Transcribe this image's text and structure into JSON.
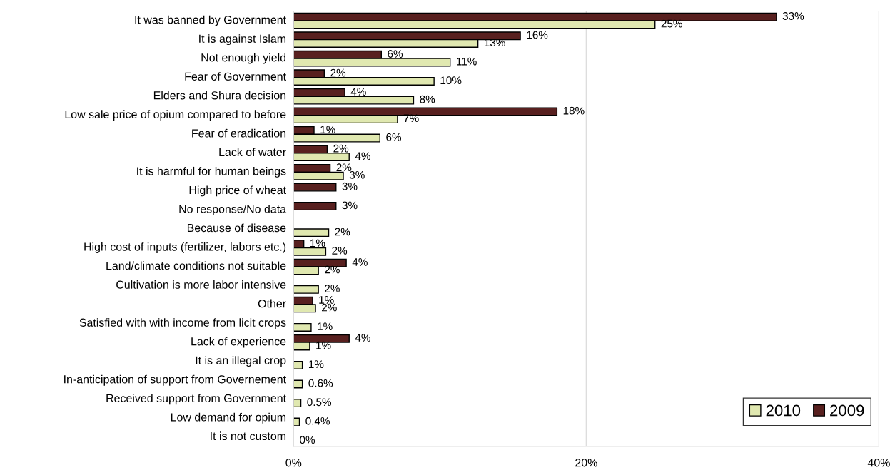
{
  "chart_data": {
    "type": "bar",
    "orientation": "horizontal",
    "categories": [
      "It was banned by Government",
      "It is against Islam",
      "Not enough yield",
      "Fear of Government",
      "Elders and Shura decision",
      "Low sale price of opium compared to before",
      "Fear of eradication",
      "Lack of water",
      "It is harmful for human beings",
      "High price of wheat",
      "No response/No data",
      "Because of disease",
      "High cost of inputs (fertilizer, labors etc.)",
      "Land/climate conditions not suitable",
      "Cultivation is more labor intensive",
      "Other",
      "Satisfied with with income from licit crops",
      "Lack of experience",
      "It is an illegal crop",
      "In-anticipation of support from Governement",
      "Received support from Government",
      "Low demand for opium",
      "It is not custom"
    ],
    "series": [
      {
        "name": "2009",
        "color": "#58201f",
        "values": [
          33.0,
          15.5,
          6.0,
          2.1,
          3.5,
          18.0,
          1.4,
          2.3,
          2.5,
          2.9,
          2.9,
          null,
          0.7,
          3.6,
          null,
          1.3,
          null,
          3.8,
          null,
          null,
          null,
          null,
          null
        ],
        "value_labels": [
          "33%",
          "16%",
          "6%",
          "2%",
          "4%",
          "18%",
          "1%",
          "2%",
          "2%",
          "3%",
          "3%",
          null,
          "1%",
          "4%",
          null,
          "1%",
          null,
          "4%",
          null,
          null,
          null,
          null,
          null
        ]
      },
      {
        "name": "2010",
        "color": "#e0e8b0",
        "values": [
          24.7,
          12.6,
          10.7,
          9.6,
          8.2,
          7.1,
          5.9,
          3.8,
          3.4,
          null,
          null,
          2.4,
          2.2,
          1.7,
          1.7,
          1.5,
          1.2,
          1.1,
          0.6,
          0.6,
          0.5,
          0.4,
          0
        ],
        "value_labels": [
          "25%",
          "13%",
          "11%",
          "10%",
          "8%",
          "7%",
          "6%",
          "4%",
          "3%",
          null,
          null,
          "2%",
          "2%",
          "2%",
          "2%",
          "2%",
          "1%",
          "1%",
          "1%",
          "0.6%",
          "0.5%",
          "0.4%",
          "0%"
        ]
      }
    ],
    "xlim": [
      0,
      40
    ],
    "xticks": [
      {
        "value": 0,
        "label": "0%"
      },
      {
        "value": 20,
        "label": "20%"
      },
      {
        "value": 40,
        "label": "40%"
      }
    ],
    "grid": "x",
    "legend": "bottom right"
  }
}
